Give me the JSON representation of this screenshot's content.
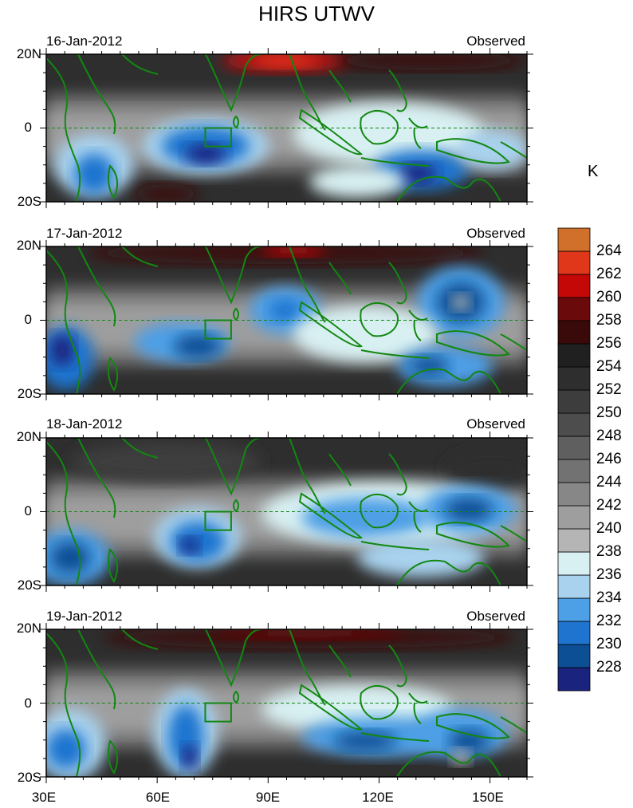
{
  "title": "HIRS UTWV",
  "panels": [
    {
      "date": "16-Jan-2012",
      "label": "Observed"
    },
    {
      "date": "17-Jan-2012",
      "label": "Observed"
    },
    {
      "date": "18-Jan-2012",
      "label": "Observed"
    },
    {
      "date": "19-Jan-2012",
      "label": "Observed"
    }
  ],
  "lat_labels": [
    "20N",
    "0",
    "20S"
  ],
  "lon_labels": [
    "30E",
    "60E",
    "90E",
    "120E",
    "150E"
  ],
  "colorbar": {
    "unit": "K",
    "levels": [
      "228",
      "230",
      "232",
      "234",
      "236",
      "238",
      "240",
      "242",
      "244",
      "246",
      "248",
      "250",
      "252",
      "254",
      "256",
      "258",
      "260",
      "262",
      "264"
    ],
    "colors": [
      "#1a237e",
      "#0d4f94",
      "#1f74cf",
      "#4d9fe6",
      "#a8d2ee",
      "#d8f0f2",
      "#b5b5b5",
      "#9e9e9e",
      "#878787",
      "#727272",
      "#5f5f5f",
      "#4d4d4d",
      "#3d3d3d",
      "#2e2e2e",
      "#202020",
      "#3a0a0a",
      "#6b0a0a",
      "#c40808",
      "#e0361a",
      "#d0702a"
    ]
  },
  "map": {
    "lon_range": [
      30,
      160
    ],
    "lat_range": [
      -20,
      20
    ],
    "box_region": {
      "lon": [
        73,
        80
      ],
      "lat": [
        -5,
        0
      ]
    }
  }
}
